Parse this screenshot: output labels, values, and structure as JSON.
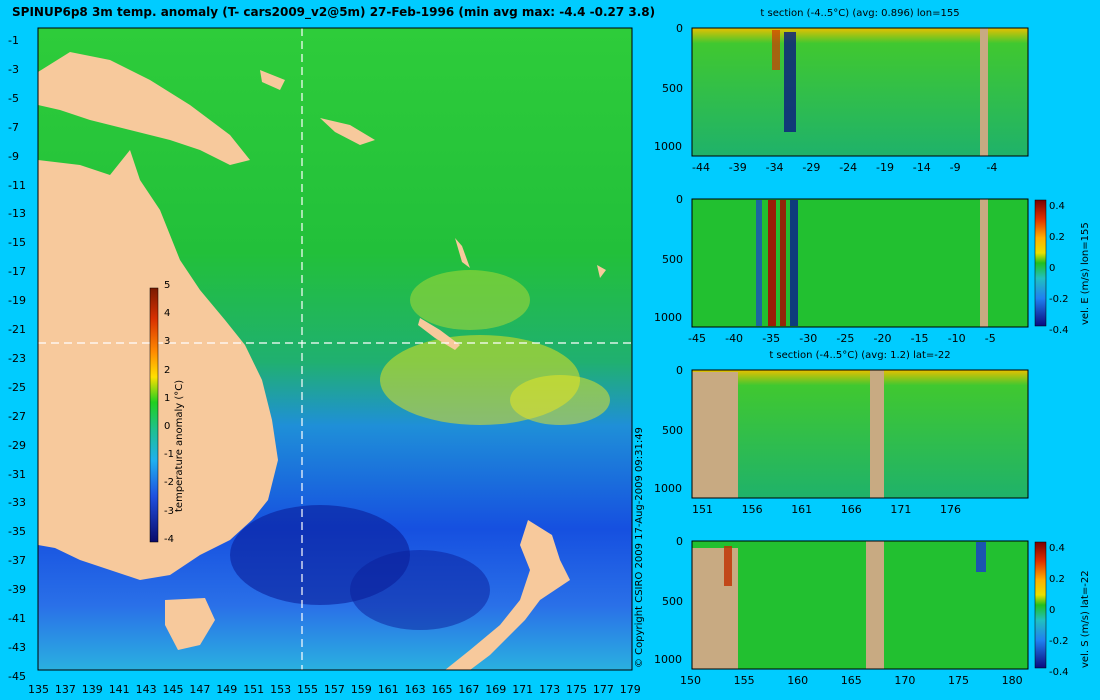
{
  "title": "SPINUP6p8 3m temp. anomaly (T- cars2009_v2@5m) 27-Feb-1996 (min avg max: -4.4 -0.27 3.8)",
  "copyright": "© Copyright CSIRO 2009   17-Aug-2009 09:31:49",
  "colors": {
    "background": "#00ccff",
    "land": "#f7c99c",
    "section_land": "#c8aa82",
    "dash": "#ffffff"
  },
  "chart_data": [
    {
      "id": "map",
      "type": "heatmap",
      "xlim": [
        135,
        180
      ],
      "ylim": [
        -45,
        0
      ],
      "x_ticks": [
        "135",
        "137",
        "139",
        "141",
        "143",
        "145",
        "147",
        "149",
        "151",
        "153",
        "155",
        "157",
        "159",
        "161",
        "163",
        "165",
        "167",
        "169",
        "171",
        "173",
        "175",
        "177",
        "179"
      ],
      "y_ticks": [
        "-1",
        "-3",
        "-5",
        "-7",
        "-9",
        "-11",
        "-13",
        "-15",
        "-17",
        "-19",
        "-21",
        "-23",
        "-25",
        "-27",
        "-29",
        "-31",
        "-33",
        "-35",
        "-37",
        "-39",
        "-41",
        "-43",
        "-45"
      ],
      "section_lon": 155,
      "section_lat": -22,
      "colorbar": {
        "label": "temperature anomaly (°C)",
        "range": [
          -4,
          5
        ],
        "ticks": [
          "5",
          "4",
          "3",
          "2",
          "1",
          "0",
          "-1",
          "-2",
          "-3",
          "-4"
        ]
      }
    },
    {
      "id": "t-section-lon",
      "type": "heatmap",
      "title": "t section (-4..5°C) (avg: 0.896) lon=155",
      "x_ticks": [
        "-44",
        "-39",
        "-34",
        "-29",
        "-24",
        "-19",
        "-14",
        "-9",
        "-4"
      ],
      "y_ticks": [
        "0",
        "500",
        "1000"
      ]
    },
    {
      "id": "vel-e-section",
      "type": "heatmap",
      "x_ticks": [
        "-45",
        "-40",
        "-35",
        "-30",
        "-25",
        "-20",
        "-15",
        "-10",
        "-5"
      ],
      "y_ticks": [
        "0",
        "500",
        "1000"
      ],
      "colorbar": {
        "label": "vel. E (m/s) lon=155",
        "ticks": [
          "0.4",
          "0.2",
          "0",
          "-0.2",
          "-0.4"
        ]
      }
    },
    {
      "id": "t-section-lat",
      "type": "heatmap",
      "title": "t section (-4..5°C) (avg: 1.2) lat=-22",
      "x_ticks": [
        "151",
        "156",
        "161",
        "166",
        "171",
        "176"
      ],
      "y_ticks": [
        "0",
        "500",
        "1000"
      ]
    },
    {
      "id": "vel-s-section",
      "type": "heatmap",
      "x_ticks": [
        "150",
        "155",
        "160",
        "165",
        "170",
        "175",
        "180"
      ],
      "y_ticks": [
        "0",
        "500",
        "1000"
      ],
      "colorbar": {
        "label": "vel. S (m/s) lat=-22",
        "ticks": [
          "0.4",
          "0.2",
          "0",
          "-0.2",
          "-0.4"
        ]
      }
    }
  ]
}
